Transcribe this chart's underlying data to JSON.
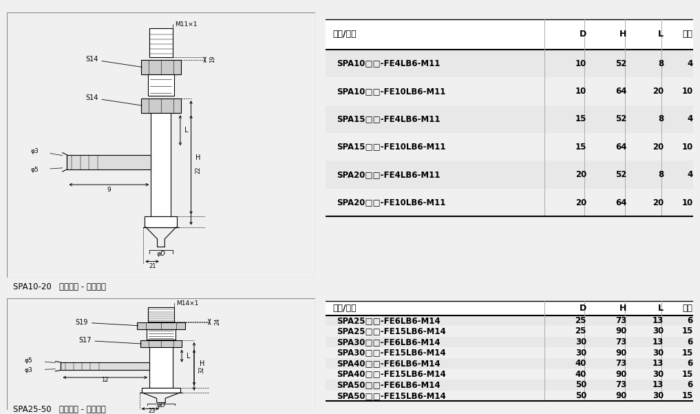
{
  "bg_color": "#f0f0f0",
  "table1_headers": [
    "型号/尺寸",
    "D",
    "H",
    "L",
    "行程"
  ],
  "table1_rows": [
    [
      "SPA10□□-FE4LB6-M11",
      "10",
      "52",
      "8",
      "4"
    ],
    [
      "SPA10□□-FE10LB6-M11",
      "10",
      "64",
      "20",
      "10"
    ],
    [
      "SPA15□□-FE4LB6-M11",
      "15",
      "52",
      "8",
      "4"
    ],
    [
      "SPA15□□-FE10LB6-M11",
      "15",
      "64",
      "20",
      "10"
    ],
    [
      "SPA20□□-FE4LB6-M11",
      "20",
      "52",
      "8",
      "4"
    ],
    [
      "SPA20□□-FE10LB6-M11",
      "20",
      "64",
      "20",
      "10"
    ]
  ],
  "table2_headers": [
    "型号/尺寸",
    "D",
    "H",
    "L",
    "行程"
  ],
  "table2_rows": [
    [
      "SPA25□□-FE6LB6-M14",
      "25",
      "73",
      "13",
      "6"
    ],
    [
      "SPA25□□-FE15LB6-M14",
      "25",
      "90",
      "30",
      "15"
    ],
    [
      "SPA30□□-FE6LB6-M14",
      "30",
      "73",
      "13",
      "6"
    ],
    [
      "SPA30□□-FE15LB6-M14",
      "30",
      "90",
      "30",
      "15"
    ],
    [
      "SPA40□□-FE6LB6-M14",
      "40",
      "73",
      "13",
      "6"
    ],
    [
      "SPA40□□-FE15LB6-M14",
      "40",
      "90",
      "30",
      "15"
    ],
    [
      "SPA50□□-FE6LB6-M14",
      "50",
      "73",
      "13",
      "6"
    ],
    [
      "SPA50□□-FE15LB6-M14",
      "50",
      "90",
      "30",
      "15"
    ]
  ],
  "label1": "SPA10-20   水平方向 - 宝塔接头",
  "label2": "SPA25-50   水平方向 - 宝塔接头",
  "line_color": "#000000",
  "shaded_row_color": "#e8e8e8",
  "header_row_color": "#ffffff",
  "table_bg": "#ffffff"
}
